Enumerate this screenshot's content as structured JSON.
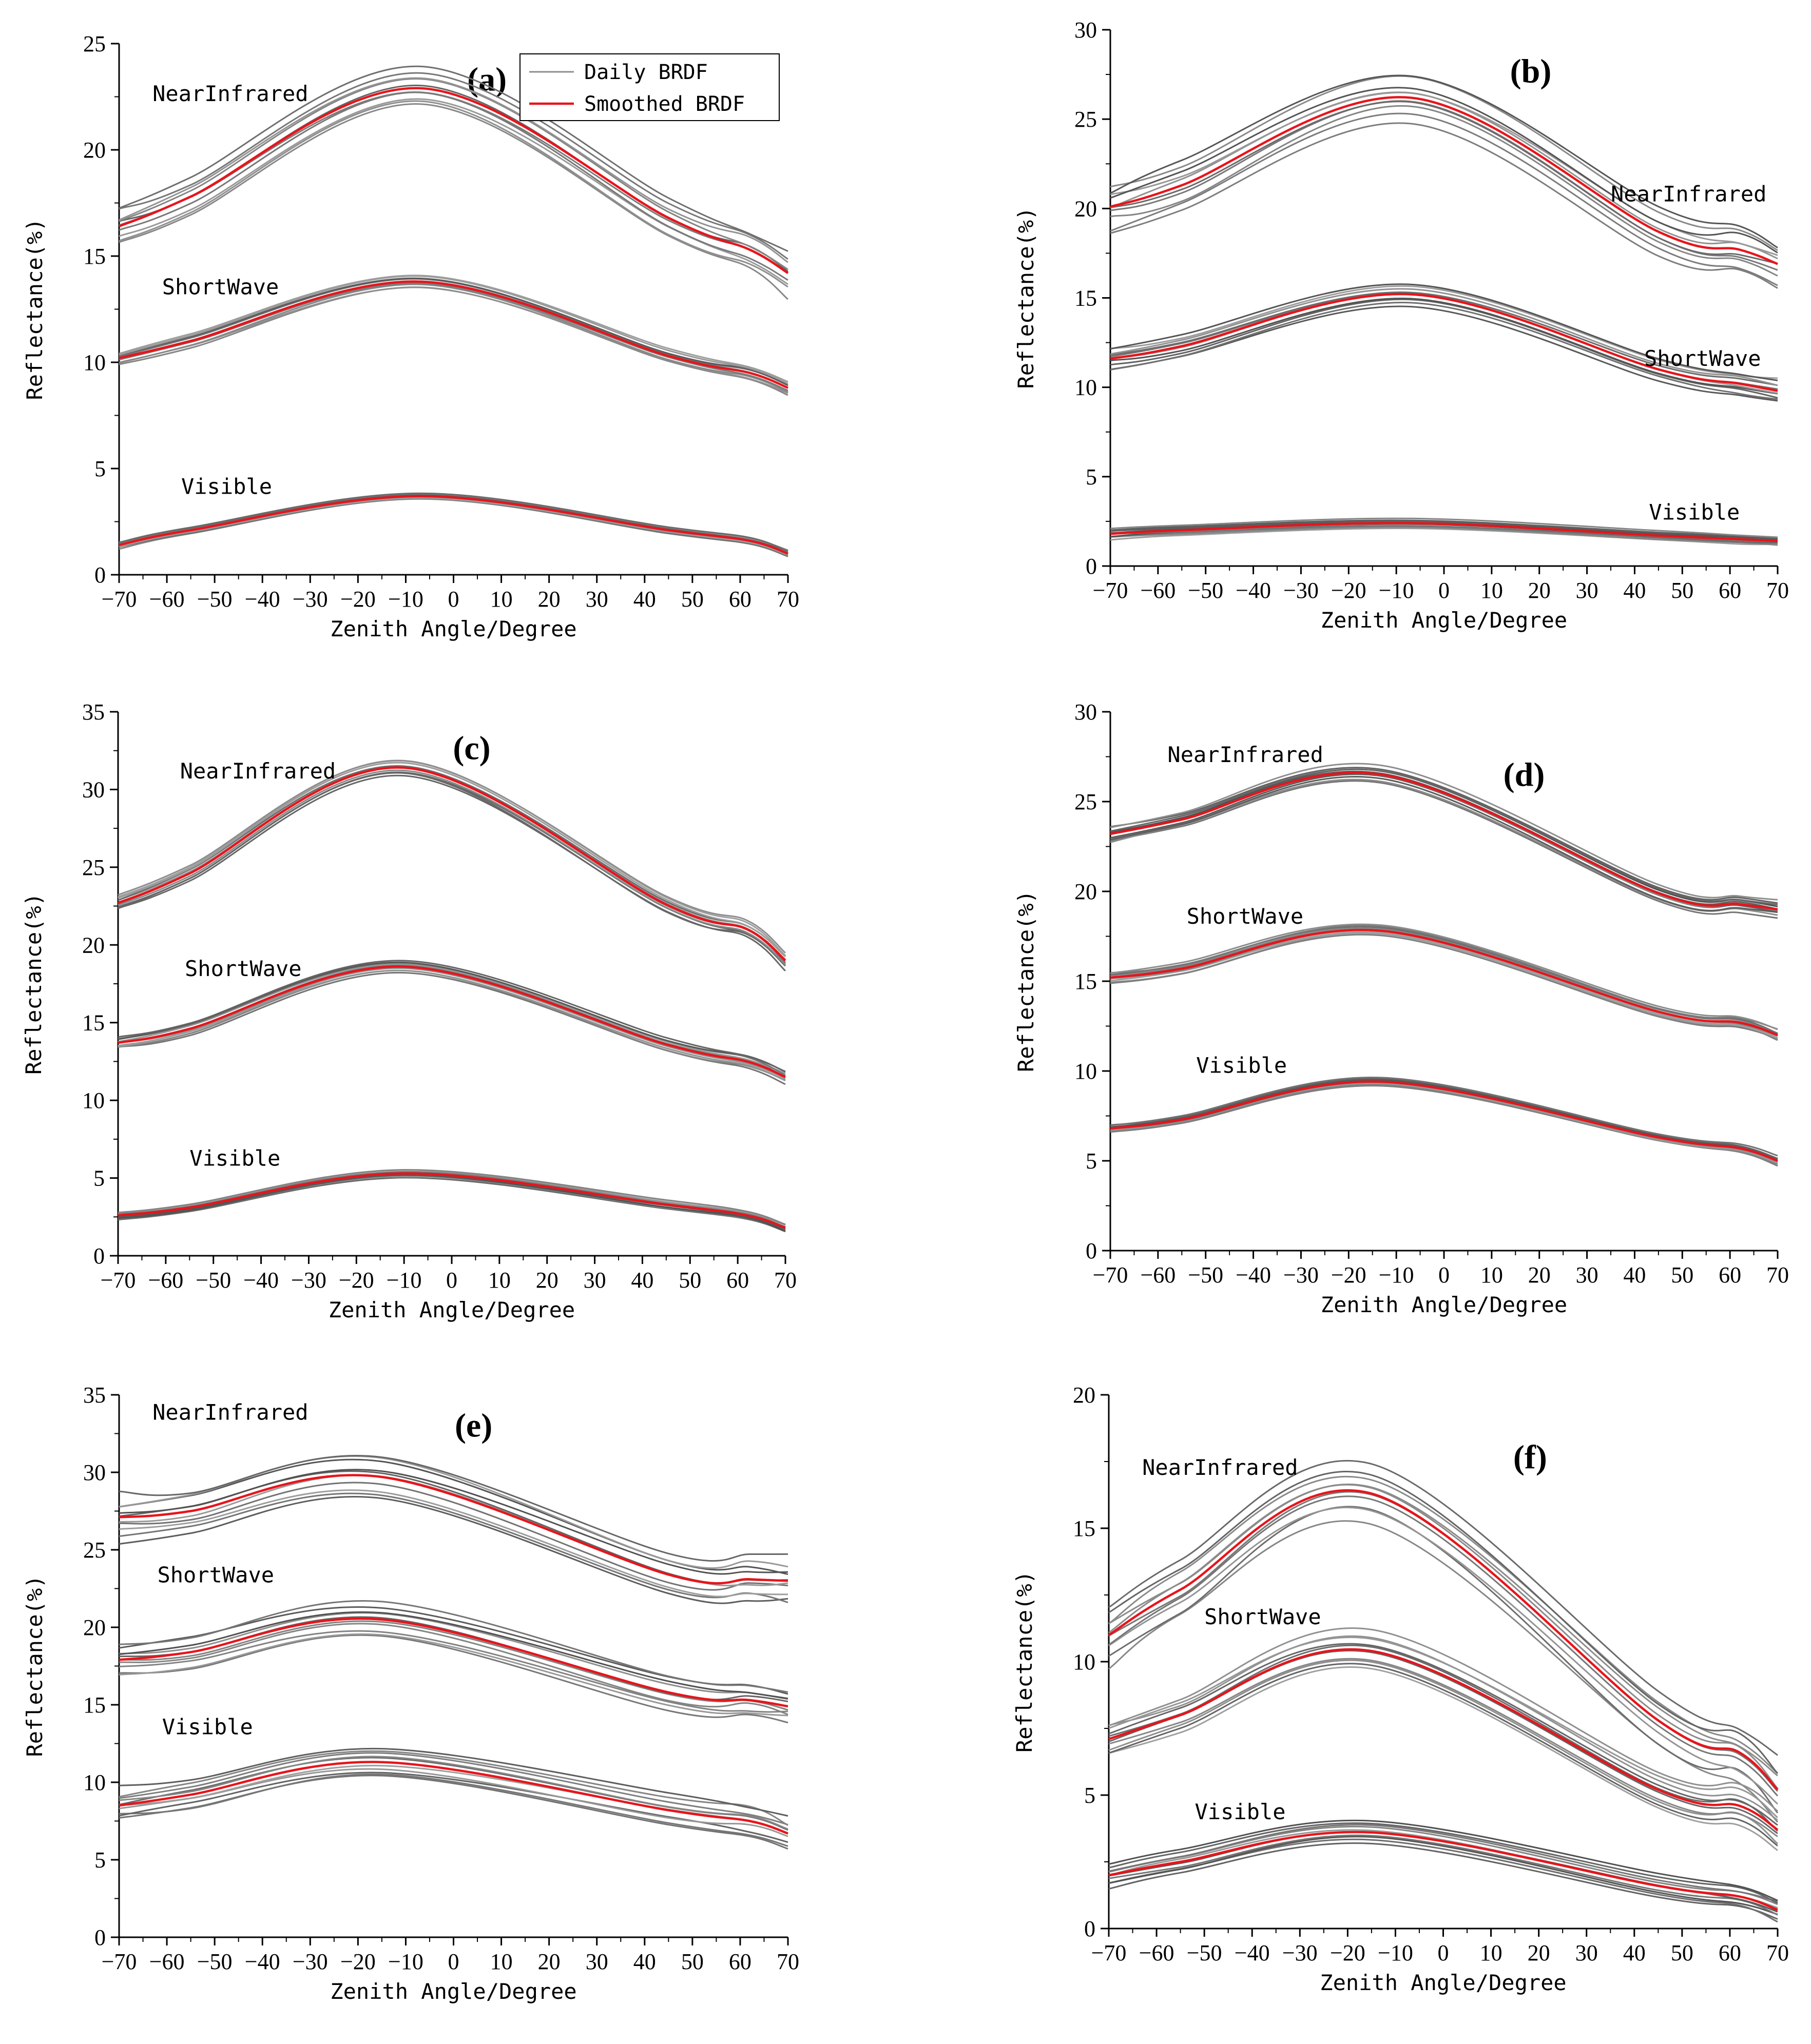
{
  "legend": {
    "items": [
      {
        "label": "Daily BRDF",
        "color": "#8c8c8c"
      },
      {
        "label": "Smoothed BRDF",
        "color": "#e8141b"
      }
    ]
  },
  "chart_data": [
    {
      "panel": "(a)",
      "type": "line",
      "xlabel": "Zenith Angle/Degree",
      "ylabel": "Reflectance(%)",
      "xlim": [
        -70,
        70
      ],
      "ylim": [
        0,
        25
      ],
      "xticks": [
        -70,
        -60,
        -50,
        -40,
        -30,
        -20,
        -10,
        0,
        10,
        20,
        30,
        40,
        50,
        60,
        70
      ],
      "yticks": [
        0,
        5,
        10,
        15,
        20,
        25
      ],
      "peak_x": -7,
      "x": [
        -70,
        -55,
        -7,
        45,
        62,
        70
      ],
      "bands": [
        {
          "name": "NearInfrared",
          "label_x": -63,
          "label_y": 22.3,
          "smoothed": [
            16.4,
            17.8,
            22.9,
            16.8,
            15.3,
            14.2
          ],
          "daily_spread": 1.8
        },
        {
          "name": "ShortWave",
          "label_x": -61,
          "label_y": 13.2,
          "smoothed": [
            10.2,
            11.0,
            13.8,
            10.3,
            9.5,
            8.8
          ],
          "daily_spread": 0.6
        },
        {
          "name": "Visible",
          "label_x": -57,
          "label_y": 3.8,
          "smoothed": [
            1.4,
            2.1,
            3.7,
            2.1,
            1.6,
            1.0
          ],
          "daily_spread": 0.3
        }
      ]
    },
    {
      "panel": "(b)",
      "type": "line",
      "xlabel": "Zenith Angle/Degree",
      "ylabel": "Reflectance(%)",
      "xlim": [
        -70,
        70
      ],
      "ylim": [
        0,
        30
      ],
      "xticks": [
        -70,
        -60,
        -50,
        -40,
        -30,
        -20,
        -10,
        0,
        10,
        20,
        30,
        40,
        50,
        60,
        70
      ],
      "yticks": [
        0,
        5,
        10,
        15,
        20,
        25,
        30
      ],
      "peak_x": -7,
      "x": [
        -70,
        -55,
        -7,
        45,
        62,
        70
      ],
      "bands": [
        {
          "name": "NearInfrared",
          "label_x": 35,
          "label_y": 20.4,
          "smoothed": [
            20.1,
            21.3,
            26.2,
            18.7,
            17.7,
            16.9
          ],
          "daily_spread": 2.5
        },
        {
          "name": "ShortWave",
          "label_x": 42,
          "label_y": 11.2,
          "smoothed": [
            11.6,
            12.3,
            15.2,
            11.0,
            10.2,
            9.8
          ],
          "daily_spread": 1.2
        },
        {
          "name": "Visible",
          "label_x": 43,
          "label_y": 2.6,
          "smoothed": [
            1.8,
            2.0,
            2.4,
            1.7,
            1.5,
            1.4
          ],
          "daily_spread": 0.5
        }
      ]
    },
    {
      "panel": "(c)",
      "type": "line",
      "xlabel": "Zenith Angle/Degree",
      "ylabel": "Reflectance(%)",
      "xlim": [
        -70,
        70
      ],
      "ylim": [
        0,
        35
      ],
      "xticks": [
        -70,
        -60,
        -50,
        -40,
        -30,
        -20,
        -10,
        0,
        10,
        20,
        30,
        40,
        50,
        60,
        70
      ],
      "yticks": [
        0,
        5,
        10,
        15,
        20,
        25,
        30,
        35
      ],
      "peak_x": -10,
      "x": [
        -70,
        -55,
        -10,
        45,
        62,
        70
      ],
      "bands": [
        {
          "name": "NearInfrared",
          "label_x": -57,
          "label_y": 30.7,
          "smoothed": [
            22.7,
            24.6,
            31.4,
            22.6,
            21.0,
            19.0
          ],
          "daily_spread": 1.0
        },
        {
          "name": "ShortWave",
          "label_x": -56,
          "label_y": 18.0,
          "smoothed": [
            13.7,
            14.6,
            18.6,
            13.6,
            12.5,
            11.5
          ],
          "daily_spread": 0.8
        },
        {
          "name": "Visible",
          "label_x": -55,
          "label_y": 5.8,
          "smoothed": [
            2.6,
            3.1,
            5.3,
            3.3,
            2.6,
            1.8
          ],
          "daily_spread": 0.5
        }
      ]
    },
    {
      "panel": "(d)",
      "type": "line",
      "xlabel": "Zenith Angle/Degree",
      "ylabel": "Reflectance(%)",
      "xlim": [
        -70,
        70
      ],
      "ylim": [
        0,
        30
      ],
      "xticks": [
        -70,
        -60,
        -50,
        -40,
        -30,
        -20,
        -10,
        0,
        10,
        20,
        30,
        40,
        50,
        60,
        70
      ],
      "yticks": [
        0,
        5,
        10,
        15,
        20,
        25,
        30
      ],
      "peak_x": -13,
      "x": [
        -70,
        -55,
        -13,
        45,
        62,
        70
      ],
      "bands": [
        {
          "name": "NearInfrared",
          "label_x": -58,
          "label_y": 27.2,
          "smoothed": [
            23.2,
            24.0,
            26.5,
            19.9,
            19.3,
            19.0
          ],
          "daily_spread": 0.9
        },
        {
          "name": "ShortWave",
          "label_x": -54,
          "label_y": 18.2,
          "smoothed": [
            15.2,
            15.7,
            17.8,
            13.3,
            12.7,
            12.0
          ],
          "daily_spread": 0.6
        },
        {
          "name": "Visible",
          "label_x": -52,
          "label_y": 9.9,
          "smoothed": [
            6.8,
            7.3,
            9.4,
            6.3,
            5.7,
            5.0
          ],
          "daily_spread": 0.4
        }
      ]
    },
    {
      "panel": "(e)",
      "type": "line",
      "xlabel": "Zenith Angle/Degree",
      "ylabel": "Reflectance(%)",
      "xlim": [
        -70,
        70
      ],
      "ylim": [
        0,
        35
      ],
      "xticks": [
        -70,
        -60,
        -50,
        -40,
        -30,
        -20,
        -10,
        0,
        10,
        20,
        30,
        40,
        50,
        60,
        70
      ],
      "yticks": [
        0,
        5,
        10,
        15,
        20,
        25,
        30,
        35
      ],
      "peak_x": -15,
      "x": [
        -70,
        -55,
        -15,
        45,
        62,
        70
      ],
      "bands": [
        {
          "name": "NearInfrared",
          "label_x": -63,
          "label_y": 33.4,
          "smoothed": [
            27.1,
            27.5,
            29.7,
            23.4,
            23.1,
            23.0
          ],
          "daily_spread": 2.8
        },
        {
          "name": "ShortWave",
          "label_x": -62,
          "label_y": 22.9,
          "smoothed": [
            17.9,
            18.4,
            20.5,
            15.8,
            15.3,
            14.9
          ],
          "daily_spread": 2.2
        },
        {
          "name": "Visible",
          "label_x": -61,
          "label_y": 13.1,
          "smoothed": [
            8.5,
            9.2,
            11.3,
            8.2,
            7.5,
            6.7
          ],
          "daily_spread": 2.0
        }
      ]
    },
    {
      "panel": "(f)",
      "type": "line",
      "xlabel": "Zenith Angle/Degree",
      "ylabel": "Reflectance(%)",
      "xlim": [
        -70,
        70
      ],
      "ylim": [
        0,
        20
      ],
      "xticks": [
        -70,
        -60,
        -50,
        -40,
        -30,
        -20,
        -10,
        0,
        10,
        20,
        30,
        40,
        50,
        60,
        70
      ],
      "yticks": [
        0,
        5,
        10,
        15,
        20
      ],
      "peak_x": -15,
      "x": [
        -70,
        -55,
        -15,
        45,
        62,
        70
      ],
      "bands": [
        {
          "name": "NearInfrared",
          "label_x": -63,
          "label_y": 17.0,
          "smoothed": [
            11.0,
            12.7,
            16.3,
            7.8,
            6.6,
            5.2
          ],
          "daily_spread": 2.0
        },
        {
          "name": "ShortWave",
          "label_x": -50,
          "label_y": 11.4,
          "smoothed": [
            7.1,
            8.0,
            10.4,
            5.2,
            4.6,
            3.7
          ],
          "daily_spread": 1.4
        },
        {
          "name": "Visible",
          "label_x": -52,
          "label_y": 4.1,
          "smoothed": [
            2.0,
            2.5,
            3.6,
            1.6,
            1.2,
            0.7
          ],
          "daily_spread": 0.8
        }
      ]
    }
  ]
}
